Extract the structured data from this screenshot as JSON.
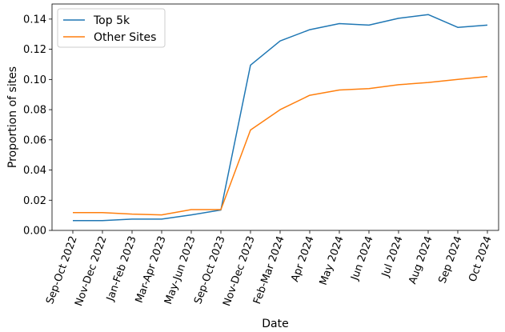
{
  "chart_data": {
    "type": "line",
    "xlabel": "Date",
    "ylabel": "Proportion of sites",
    "categories": [
      "Sep-Oct 2022",
      "Nov-Dec 2022",
      "Jan-Feb 2023",
      "Mar-Apr 2023",
      "May-Jun 2023",
      "Sep-Oct 2023",
      "Nov-Dec 2023",
      "Feb-Mar 2024",
      "Apr 2024",
      "May 2024",
      "Jun 2024",
      "Jul 2024",
      "Aug 2024",
      "Sep 2024",
      "Oct 2024"
    ],
    "ylim": [
      0.0,
      0.15
    ],
    "yticks": [
      "0.00",
      "0.02",
      "0.04",
      "0.06",
      "0.08",
      "0.10",
      "0.12",
      "0.14"
    ],
    "legend_position": "top-left",
    "grid": false,
    "series": [
      {
        "name": "Top 5k",
        "color": "#1f77b4",
        "values": [
          0.0065,
          0.0065,
          0.0075,
          0.0075,
          0.0103,
          0.0135,
          0.1095,
          0.1255,
          0.133,
          0.137,
          0.136,
          0.1405,
          0.143,
          0.1345,
          0.136
        ]
      },
      {
        "name": "Other Sites",
        "color": "#ff7f0e",
        "values": [
          0.0118,
          0.0118,
          0.0108,
          0.0103,
          0.0138,
          0.0138,
          0.0665,
          0.08,
          0.0895,
          0.093,
          0.094,
          0.0965,
          0.098,
          0.1,
          0.102
        ]
      }
    ]
  }
}
